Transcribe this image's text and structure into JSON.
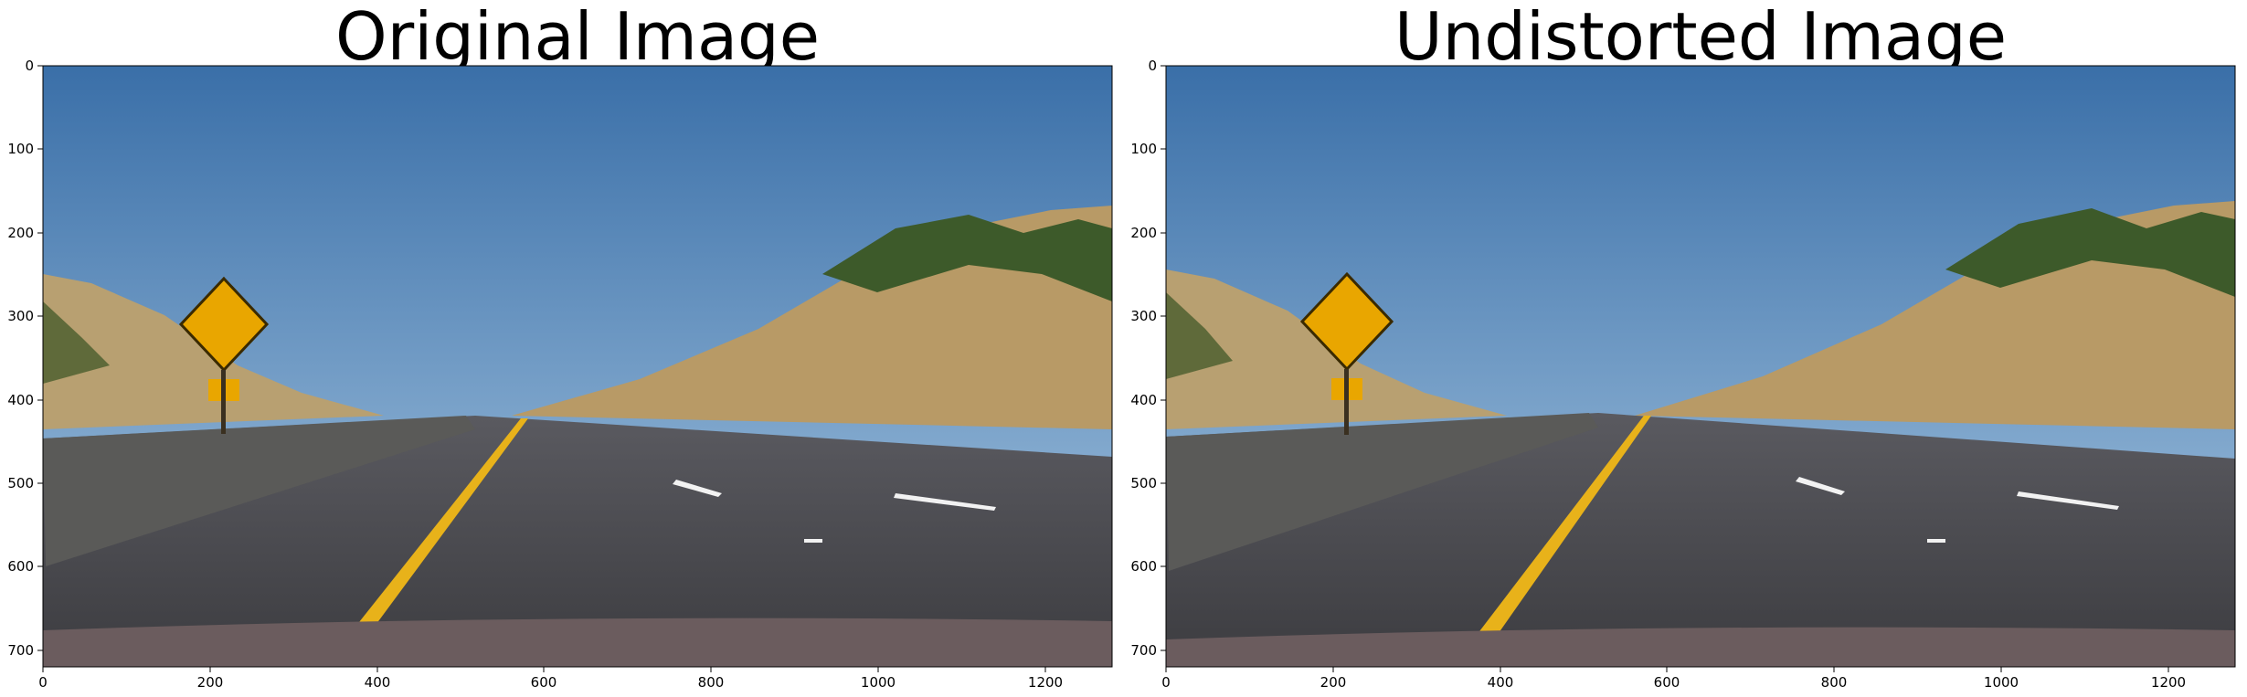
{
  "figure": {
    "panels": [
      {
        "id": "original",
        "title": "Original Image",
        "x_ticks": [
          "0",
          "200",
          "400",
          "600",
          "800",
          "1000",
          "1200"
        ],
        "y_ticks": [
          "0",
          "100",
          "200",
          "300",
          "400",
          "500",
          "600",
          "700"
        ]
      },
      {
        "id": "undistorted",
        "title": "Undistorted Image",
        "x_ticks": [
          "0",
          "200",
          "400",
          "600",
          "800",
          "1000",
          "1200"
        ],
        "y_ticks": [
          "0",
          "100",
          "200",
          "300",
          "400",
          "500",
          "600",
          "700"
        ]
      }
    ],
    "image_extent": {
      "x": [
        0,
        1280
      ],
      "y": [
        720,
        0
      ]
    },
    "scene": {
      "description_tokens": [
        "highway",
        "deer-crossing-sign",
        "yellow-lane-line",
        "concrete-barrier",
        "hills",
        "sky"
      ],
      "colors": {
        "sky_top": "#3a6fa8",
        "sky_bottom": "#9fc0dc",
        "hill": "#b8a071",
        "tree": "#3d5a2a",
        "road": "#4a4a4e",
        "barrier": "#5a5a58",
        "lane_yellow": "#e8b21a",
        "lane_white": "#f2f2f2",
        "sign_yellow": "#e9a600",
        "hood": "#6b5c5e"
      }
    }
  }
}
